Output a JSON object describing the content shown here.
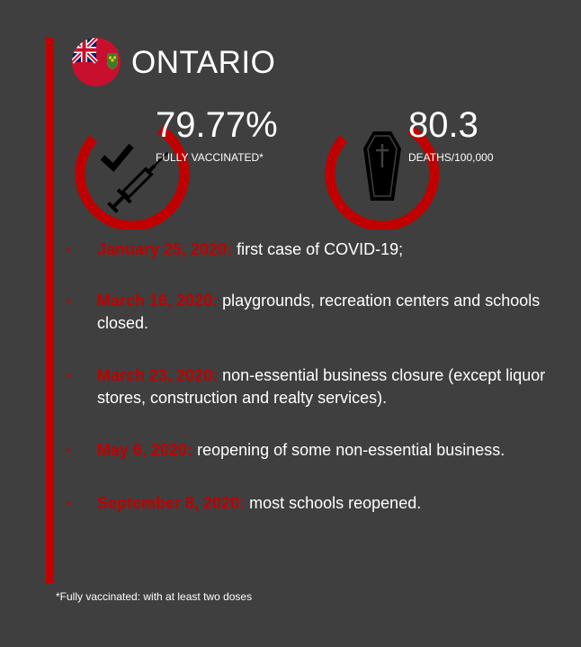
{
  "region": {
    "name": "ONTARIO",
    "flag_icon": "ontario-flag-icon"
  },
  "colors": {
    "accent": "#c00000",
    "background": "#3f3f3f",
    "text": "#ffffff"
  },
  "stats": {
    "vaccinated": {
      "value": "79.77%",
      "label": "FULLY VACCINATED*",
      "icon": "syringe-check-icon"
    },
    "deaths": {
      "value": "80.3",
      "label": "DEATHS/100,000",
      "icon": "coffin-icon"
    }
  },
  "events": [
    {
      "date": "January 25, 2020:",
      "text": "first case of COVID-19;"
    },
    {
      "date": "March 16, 2020:",
      "text": "playgrounds, recreation centers and schools closed."
    },
    {
      "date": "March 23, 2020:",
      "text": "non-essential business closure (except liquor stores, construction and realty services)."
    },
    {
      "date": "May 6, 2020:",
      "text": "reopening of some non-essential business."
    },
    {
      "date": "September 8, 2020:",
      "text": "most schools reopened."
    }
  ],
  "footnote": "*Fully vaccinated: with at least two doses"
}
